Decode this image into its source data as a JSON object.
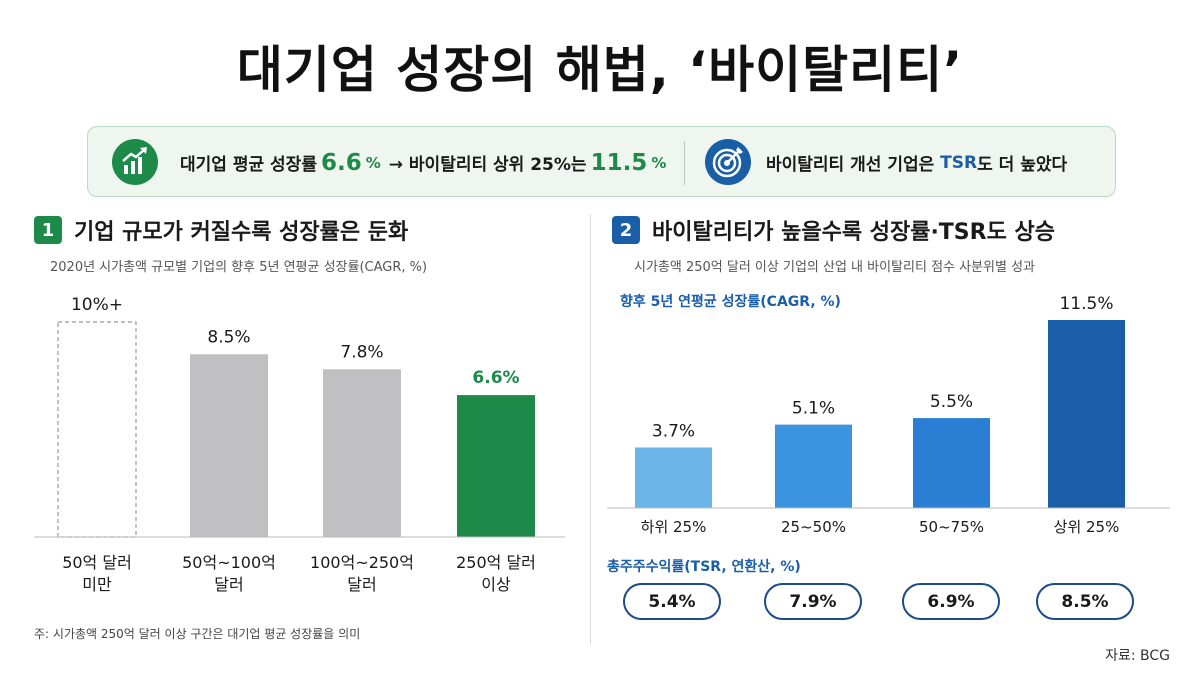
{
  "title": "대기업 성장의 해법, ‘바이탈리티’",
  "summary": {
    "left_prefix": "대기업 평균 성장률",
    "left_value1": "6.6",
    "left_unit1": "%",
    "left_middle": "→ 바이탈리티 상위 25%는",
    "left_value2": "11.5",
    "left_unit2": "%",
    "right_prefix": "바이탈리티 개선 기업은",
    "right_tsr": "TSR",
    "right_suffix": "도 더 높았다",
    "icon_left": "growth-chart-icon",
    "icon_right": "target-icon"
  },
  "section1": {
    "number": "1",
    "title": "기업 규모가 커질수록 성장률은 둔화",
    "subtitle": "2020년 시가총액 규모별 기업의 향후 5년 연평균 성장률(CAGR, %)"
  },
  "section2": {
    "number": "2",
    "title": "바이탈리티가 높을수록 성장률·TSR도 상승",
    "subtitle": "시가총액 250억 달러 이상 기업의 산업 내 바이탈리티 점수 사분위별 성과",
    "tsr_label": "총주주수익률(TSR, 연환산, %)"
  },
  "note": "주: 시가총액 250억 달러 이상 구간은 대기업 평균 성장률을 의미",
  "source": "자료: BCG",
  "colors": {
    "green": "#1e8a49",
    "blue_dark": "#1a5ea8",
    "gray_bar": "#c0c0c2"
  },
  "chart_data": [
    {
      "type": "bar",
      "title": "기업 규모가 커질수록 성장률은 둔화",
      "subtitle": "2020년 시가총액 규모별 기업의 향후 5년 연평균 성장률(CAGR, %)",
      "categories": [
        [
          "50억 달러",
          "미만"
        ],
        [
          "50억~100억",
          "달러"
        ],
        [
          "100억~250억",
          "달러"
        ],
        [
          "250억 달러",
          "이상"
        ]
      ],
      "values": [
        10,
        8.5,
        7.8,
        6.6
      ],
      "labels": [
        "10%+",
        "8.5%",
        "7.8%",
        "6.6%"
      ],
      "styles": [
        "dashed-outline",
        "gray",
        "gray",
        "green"
      ],
      "ylim": [
        0,
        10
      ],
      "grid": false
    },
    {
      "type": "bar",
      "title": "바이탈리티가 높을수록 성장률·TSR도 상승",
      "ylabel": "향후 5년 연평균 성장률(CAGR, %)",
      "categories": [
        "하위 25%",
        "25~50%",
        "50~75%",
        "상위 25%"
      ],
      "values": [
        3.7,
        5.1,
        5.5,
        11.5
      ],
      "labels": [
        "3.7%",
        "5.1%",
        "5.5%",
        "11.5%"
      ],
      "colors": [
        "#6ab4e8",
        "#3d94de",
        "#2a7fd4",
        "#1a5ea8"
      ],
      "tsr_values": [
        "5.4%",
        "7.9%",
        "6.9%",
        "8.5%"
      ],
      "ylim": [
        0,
        11.5
      ],
      "grid": false
    }
  ]
}
